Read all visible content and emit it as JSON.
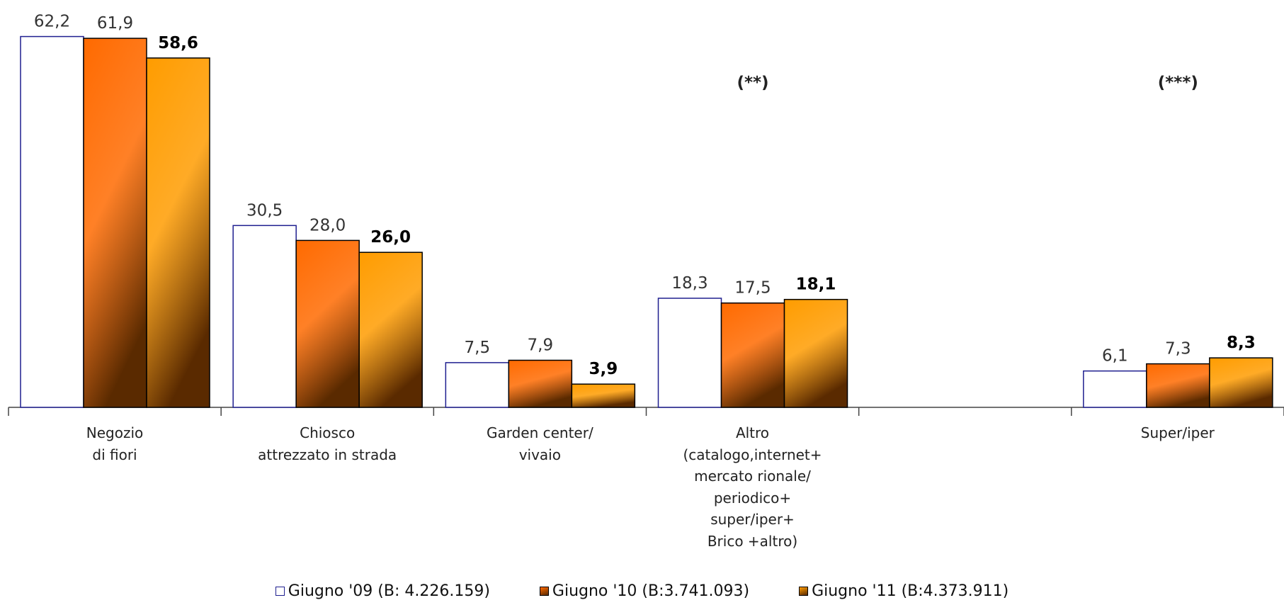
{
  "chart_data": {
    "type": "bar",
    "categories": [
      "Negozio\ndi fiori",
      "Chiosco\nattrezzato in strada",
      "Garden center/\nvivaio",
      "Altro\n(catalogo,internet+\nmercato rionale/\nperiodico+\nsuper/iper+\nBrico +altro)",
      null,
      "Super/iper"
    ],
    "series": [
      {
        "name": "Giugno '09 (B: 4.226.159)",
        "color": "#ffffff",
        "edge_color": "#1f1f8f",
        "label_weight": "normal",
        "values": [
          62.2,
          30.5,
          7.5,
          18.3,
          null,
          6.1
        ],
        "value_labels": [
          "62,2",
          "30,5",
          "7,5",
          "18,3",
          null,
          "6,1"
        ]
      },
      {
        "name": "Giugno '10 (B:3.741.093)",
        "color": "#ff6a00",
        "edge_color": "#000000",
        "label_weight": "normal",
        "values": [
          61.9,
          28.0,
          7.9,
          17.5,
          null,
          7.3
        ],
        "value_labels": [
          "61,9",
          "28,0",
          "7,9",
          "17,5",
          null,
          "7,3"
        ]
      },
      {
        "name": "Giugno '11 (B:4.373.911)",
        "color": "#ff9c00",
        "edge_color": "#000000",
        "label_weight": "bold",
        "values": [
          58.6,
          26.0,
          3.9,
          18.1,
          null,
          8.3
        ],
        "value_labels": [
          "58,6",
          "26,0",
          "3,9",
          "18,1",
          null,
          "8,3"
        ]
      }
    ],
    "annotations": [
      {
        "text": "(**)",
        "category": 3
      },
      {
        "text": "(***)",
        "category": 5
      }
    ],
    "ylim": [
      0,
      65
    ],
    "grid": false,
    "legend": "bottom"
  }
}
